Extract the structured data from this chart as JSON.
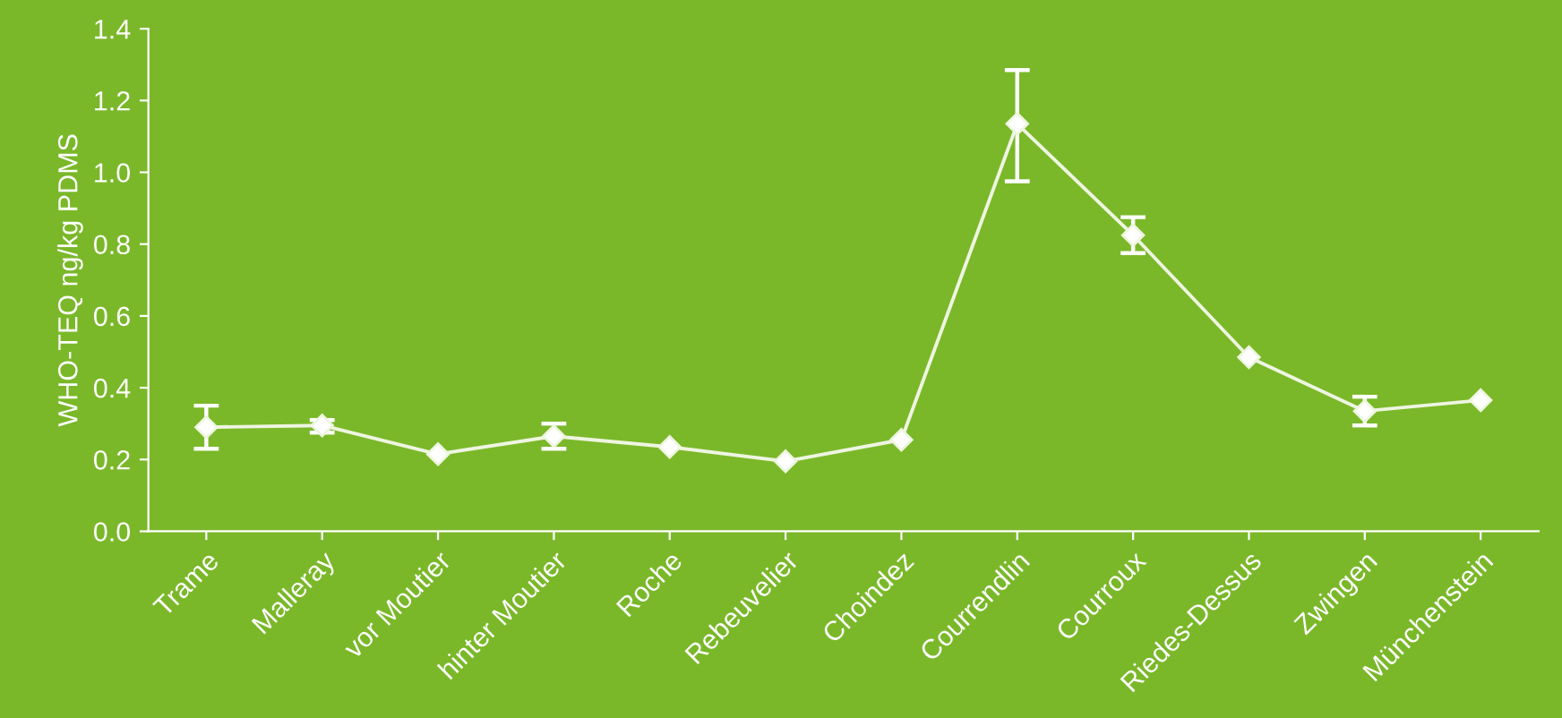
{
  "chart_data": {
    "type": "line",
    "ylabel": "WHO-TEQ ng/kg PDMS",
    "categories": [
      "Trame",
      "Malleray",
      "vor Moutier",
      "hinter Moutier",
      "Roche",
      "Rebeuvelier",
      "Choindez",
      "Courrendlin",
      "Courroux",
      "Riedes-Dessus",
      "Zwingen",
      "Münchenstein"
    ],
    "series": [
      {
        "color": "#eef5e0",
        "values": [
          0.29,
          0.295,
          0.215,
          0.265,
          0.235,
          0.195,
          0.255,
          1.135,
          0.825,
          0.485,
          0.335,
          0.365
        ],
        "errors": [
          [
            0.23,
            0.35
          ],
          [
            0.275,
            0.31
          ],
          null,
          [
            0.23,
            0.3
          ],
          null,
          null,
          null,
          [
            0.975,
            1.285
          ],
          [
            0.775,
            0.875
          ],
          null,
          [
            0.295,
            0.375
          ],
          null
        ]
      }
    ],
    "ylim": [
      0,
      1.4
    ],
    "yticks": [
      {
        "value": 0,
        "label": "0.0"
      },
      0.2,
      0.4,
      0.6,
      0.8,
      {
        "value": 1,
        "label": "1.0"
      },
      1.2,
      1.4
    ],
    "marker": "diamond",
    "line_style": "solid",
    "grid": false,
    "legend": false
  }
}
